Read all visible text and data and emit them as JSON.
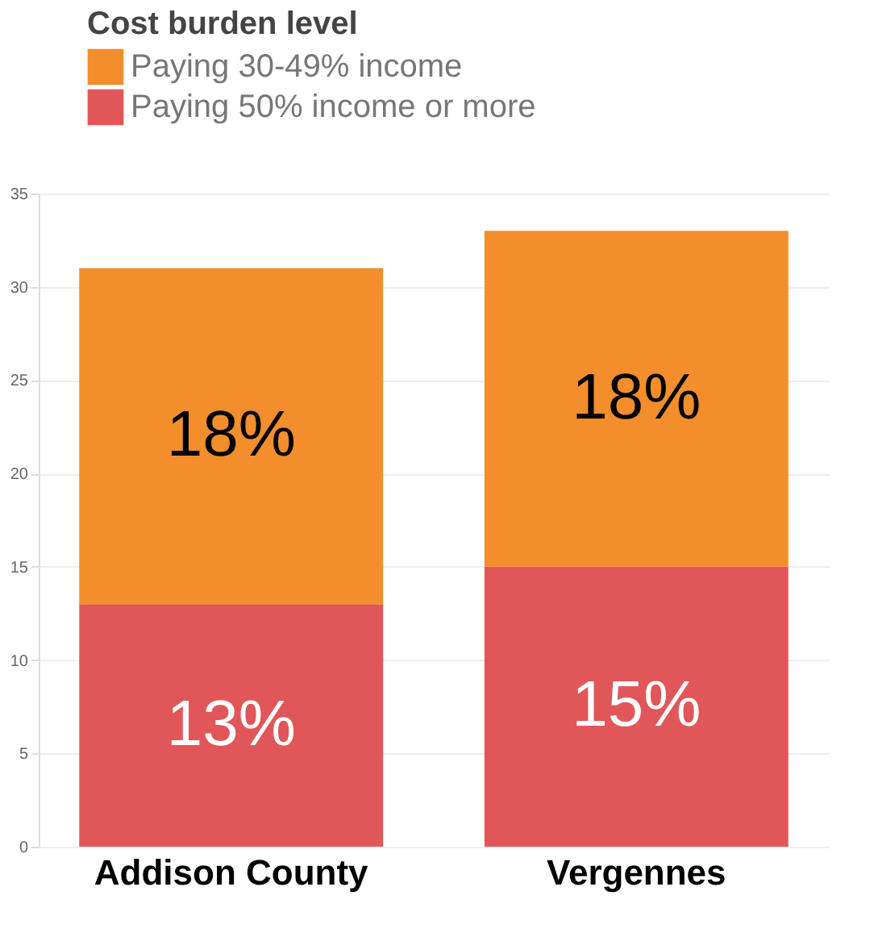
{
  "chart_data": {
    "type": "bar",
    "stacked": true,
    "legend_title": "Cost burden level",
    "legend": "top left",
    "categories": [
      "Addison County",
      "Vergennes"
    ],
    "series": [
      {
        "name": "Paying 50% income or more",
        "color": "#e15759",
        "values": [
          13,
          15
        ],
        "value_labels": [
          "13%",
          "15%"
        ]
      },
      {
        "name": "Paying 30-49% income",
        "color": "#f28e2b",
        "values": [
          18,
          18
        ],
        "value_labels": [
          "18%",
          "18%"
        ]
      }
    ],
    "ylim": [
      0,
      35
    ],
    "yticks": [
      0,
      5,
      10,
      15,
      20,
      25,
      30,
      35
    ],
    "grid": "y"
  }
}
